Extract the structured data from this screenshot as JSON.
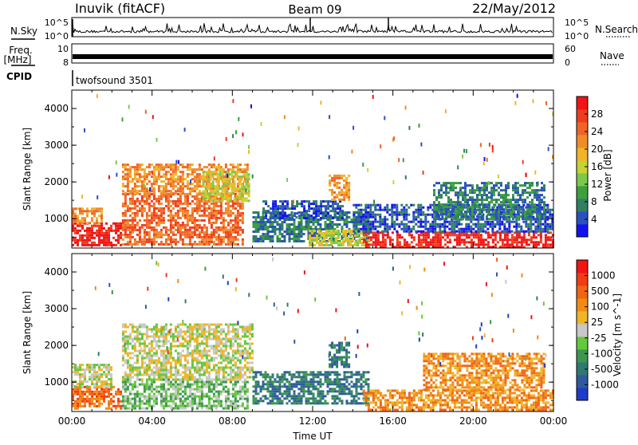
{
  "header": {
    "title": "Inuvik (fitACF)",
    "beam": "Beam 09",
    "date": "22/May/2012"
  },
  "nsky_panel": {
    "left_label": "N.Sky",
    "left_ticks": [
      "10^5",
      "10^0"
    ],
    "right_ticks": [
      "10^5",
      "10^0"
    ],
    "right_label": "N.Search",
    "right_legend_line": "dotted"
  },
  "freq_panel": {
    "left_label_1": "Freq.",
    "left_label_2": "[MHz]",
    "left_ticks": [
      "10",
      "8"
    ],
    "right_ticks": [
      "60",
      "0"
    ],
    "right_label": "Nave",
    "right_legend_line": "dotted"
  },
  "cpid": {
    "label": "CPID",
    "program": "twofsound 3501"
  },
  "chart_data": [
    {
      "type": "heatmap",
      "name": "power",
      "ylabel": "Slant Range [km]",
      "yticks": [
        "1000",
        "2000",
        "3000",
        "4000"
      ],
      "ylim": [
        200,
        4500
      ],
      "xlim_hours": [
        0,
        24
      ],
      "colorbar": {
        "label": "Power [dB]",
        "ticks": [
          "4",
          "8",
          "12",
          "16",
          "20",
          "24",
          "28"
        ],
        "colors": [
          "#1212f0",
          "#2a50c0",
          "#2f8060",
          "#3ca03c",
          "#7cc84c",
          "#c8d232",
          "#f0b428",
          "#f08c28",
          "#f06428",
          "#f03c1e",
          "#f01414"
        ]
      },
      "echo_regions": [
        {
          "t0": 0.0,
          "t1": 2.5,
          "r0": 250,
          "r1": 900,
          "level": 10
        },
        {
          "t0": 0.0,
          "t1": 1.5,
          "r0": 900,
          "r1": 1300,
          "level": 7
        },
        {
          "t0": 2.5,
          "t1": 8.5,
          "r0": 300,
          "r1": 1700,
          "level": 8
        },
        {
          "t0": 2.5,
          "t1": 8.8,
          "r0": 1700,
          "r1": 2500,
          "level": 7
        },
        {
          "t0": 6.5,
          "t1": 8.8,
          "r0": 1500,
          "r1": 2300,
          "level": 5
        },
        {
          "t0": 9.0,
          "t1": 14.8,
          "r0": 400,
          "r1": 1200,
          "level": 2
        },
        {
          "t0": 9.5,
          "t1": 13.5,
          "r0": 1000,
          "r1": 1500,
          "level": 1
        },
        {
          "t0": 12.8,
          "t1": 13.8,
          "r0": 1500,
          "r1": 2200,
          "level": 7
        },
        {
          "t0": 11.8,
          "t1": 14.8,
          "r0": 300,
          "r1": 700,
          "level": 5
        },
        {
          "t0": 14.5,
          "t1": 24.0,
          "r0": 250,
          "r1": 650,
          "level": 10
        },
        {
          "t0": 14.0,
          "t1": 24.0,
          "r0": 650,
          "r1": 1400,
          "level": 1
        },
        {
          "t0": 18.0,
          "t1": 23.5,
          "r0": 1000,
          "r1": 2000,
          "level": 2
        }
      ]
    },
    {
      "type": "heatmap",
      "name": "velocity",
      "ylabel": "Slant Range [km]",
      "xlabel": "Time UT",
      "xticks": [
        "00:00",
        "04:00",
        "08:00",
        "12:00",
        "16:00",
        "20:00",
        "00:00"
      ],
      "yticks": [
        "1000",
        "2000",
        "3000",
        "4000"
      ],
      "ylim": [
        200,
        4500
      ],
      "xlim_hours": [
        0,
        24
      ],
      "colorbar": {
        "label": "Velocity [m s^-1]",
        "ticks": [
          "1000",
          "500",
          "100",
          "25",
          "-25",
          "-100",
          "-500",
          "-1000"
        ],
        "colors": [
          "#1e3cc8",
          "#2f5aa0",
          "#2f7a70",
          "#3c9650",
          "#64c83c",
          "#c8c8c8",
          "#f0b428",
          "#f08c14",
          "#f06414",
          "#f03c14",
          "#f01414"
        ]
      },
      "echo_regions": [
        {
          "t0": 0.0,
          "t1": 2.5,
          "r0": 250,
          "r1": 900,
          "level": 8
        },
        {
          "t0": 0.0,
          "t1": 2.0,
          "r0": 900,
          "r1": 1500,
          "level": 5
        },
        {
          "t0": 2.5,
          "t1": 8.8,
          "r0": 300,
          "r1": 1100,
          "level": 4
        },
        {
          "t0": 2.5,
          "t1": 9.0,
          "r0": 1100,
          "r1": 2600,
          "level": 5
        },
        {
          "t0": 9.0,
          "t1": 14.8,
          "r0": 400,
          "r1": 1300,
          "level": 2
        },
        {
          "t0": 12.8,
          "t1": 13.8,
          "r0": 1400,
          "r1": 2100,
          "level": 2
        },
        {
          "t0": 14.5,
          "t1": 24.0,
          "r0": 250,
          "r1": 800,
          "level": 7
        },
        {
          "t0": 17.5,
          "t1": 23.5,
          "r0": 800,
          "r1": 1800,
          "level": 7
        }
      ]
    }
  ]
}
